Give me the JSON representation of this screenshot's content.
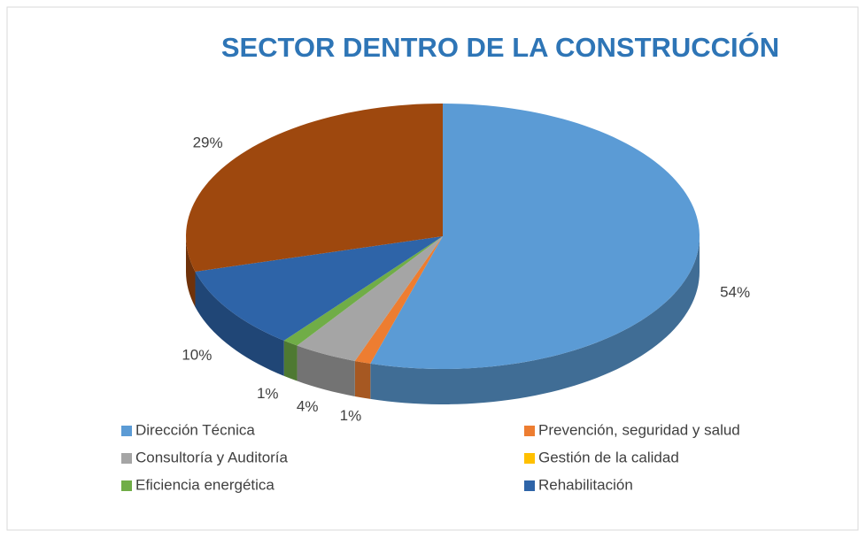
{
  "chart_data": {
    "type": "pie3d",
    "title": "SECTOR DENTRO DE LA CONSTRUCCIÓN",
    "categories": [
      "Dirección Técnica",
      "Prevención, seguridad y salud",
      "Consultoría y Auditoría",
      "Gestión de la calidad",
      "Eficiencia energética",
      "Rehabilitación",
      null
    ],
    "values": [
      54,
      1,
      4,
      0,
      1,
      10,
      29
    ],
    "colors": [
      "#5b9bd5",
      "#ed7d31",
      "#a5a5a5",
      "#ffc000",
      "#70ad47",
      "#2e64a8",
      "#9e480e"
    ],
    "legend": "bottom"
  }
}
